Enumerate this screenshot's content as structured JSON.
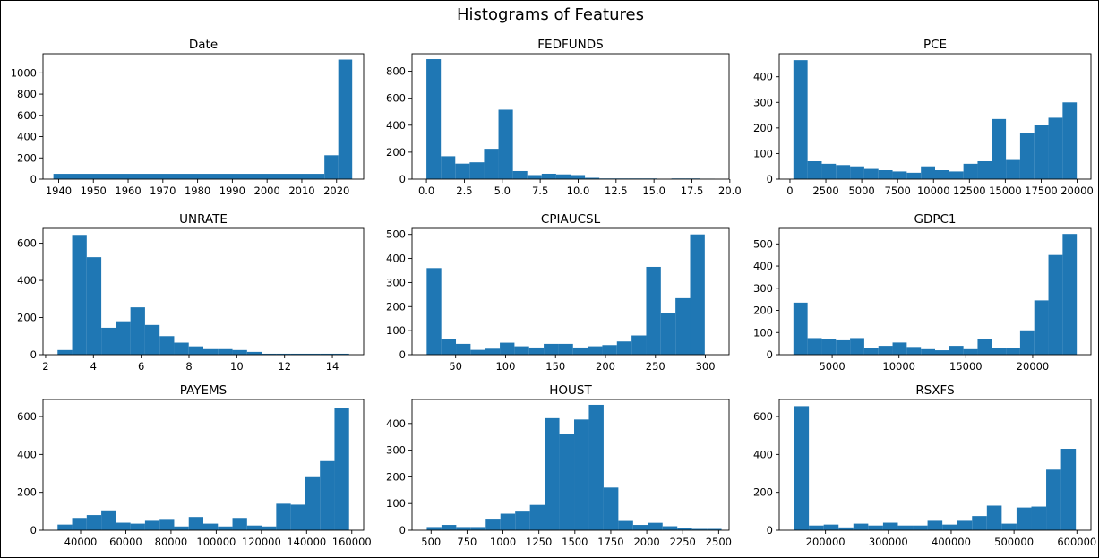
{
  "figure_title": "Histograms of Features",
  "bar_color": "#1f77b4",
  "chart_data": [
    {
      "type": "bar",
      "title": "Date",
      "bins": [
        [
          1938.5,
          2016.5,
          50
        ],
        [
          2016.5,
          2020.5,
          225
        ],
        [
          2020.5,
          2024.5,
          1125
        ]
      ],
      "xlim": [
        1935.5,
        2027.8
      ],
      "ylim": [
        0,
        1180
      ],
      "xticks": [
        1940,
        1950,
        1960,
        1970,
        1980,
        1990,
        2000,
        2010,
        2020
      ],
      "xticklabels": [
        "1940",
        "1950",
        "1960",
        "1970",
        "1980",
        "1990",
        "2000",
        "2010",
        "2020"
      ],
      "yticks": [
        0,
        200,
        400,
        600,
        800,
        1000
      ],
      "yticklabels": [
        "0",
        "200",
        "400",
        "600",
        "800",
        "1000"
      ]
    },
    {
      "type": "bar",
      "title": "FEDFUNDS",
      "x_start": 0,
      "bin_width": 0.95,
      "values": [
        890,
        170,
        115,
        125,
        225,
        515,
        60,
        30,
        40,
        35,
        30,
        10,
        5,
        5,
        5,
        5,
        2,
        5,
        5,
        3
      ],
      "xlim": [
        -0.95,
        19.95
      ],
      "ylim": [
        0,
        930
      ],
      "xticks": [
        0,
        2.5,
        5,
        7.5,
        10,
        12.5,
        15,
        17.5,
        20
      ],
      "xticklabels": [
        "0.0",
        "2.5",
        "5.0",
        "7.5",
        "10.0",
        "12.5",
        "15.0",
        "17.5",
        "20.0"
      ],
      "yticks": [
        0,
        200,
        400,
        600,
        800
      ],
      "yticklabels": [
        "0",
        "200",
        "400",
        "600",
        "800"
      ]
    },
    {
      "type": "bar",
      "title": "PCE",
      "x_start": 240,
      "bin_width": 987,
      "values": [
        465,
        70,
        60,
        55,
        50,
        40,
        35,
        30,
        25,
        50,
        35,
        30,
        60,
        70,
        235,
        75,
        180,
        210,
        240,
        300
      ],
      "xlim": [
        -747,
        20967
      ],
      "ylim": [
        0,
        490
      ],
      "xticks": [
        0,
        2500,
        5000,
        7500,
        10000,
        12500,
        15000,
        17500,
        20000
      ],
      "xticklabels": [
        "0",
        "2500",
        "5000",
        "7500",
        "10000",
        "12500",
        "15000",
        "17500",
        "20000"
      ],
      "yticks": [
        0,
        100,
        200,
        300,
        400
      ],
      "yticklabels": [
        "0",
        "100",
        "200",
        "300",
        "400"
      ]
    },
    {
      "type": "bar",
      "title": "UNRATE",
      "x_start": 2.5,
      "bin_width": 0.61,
      "values": [
        25,
        645,
        525,
        145,
        180,
        255,
        160,
        100,
        65,
        45,
        30,
        30,
        25,
        15,
        5,
        5,
        5,
        5,
        5,
        5
      ],
      "xlim": [
        1.89,
        15.31
      ],
      "ylim": [
        0,
        680
      ],
      "xticks": [
        2,
        4,
        6,
        8,
        10,
        12,
        14
      ],
      "xticklabels": [
        "2",
        "4",
        "6",
        "8",
        "10",
        "12",
        "14"
      ],
      "yticks": [
        0,
        200,
        400,
        600
      ],
      "yticklabels": [
        "0",
        "200",
        "400",
        "600"
      ]
    },
    {
      "type": "bar",
      "title": "CPIAUCSL",
      "x_start": 21,
      "bin_width": 14.65,
      "values": [
        360,
        65,
        45,
        20,
        25,
        50,
        35,
        30,
        45,
        45,
        30,
        35,
        40,
        55,
        80,
        365,
        175,
        235,
        500
      ],
      "xlim": [
        6.35,
        323.7
      ],
      "ylim": [
        0,
        525
      ],
      "xticks": [
        50,
        100,
        150,
        200,
        250,
        300
      ],
      "xticklabels": [
        "50",
        "100",
        "150",
        "200",
        "250",
        "300"
      ],
      "yticks": [
        0,
        100,
        200,
        300,
        400,
        500
      ],
      "yticklabels": [
        "0",
        "100",
        "200",
        "300",
        "400",
        "500"
      ]
    },
    {
      "type": "bar",
      "title": "GDPC1",
      "x_start": 2100,
      "bin_width": 1060,
      "values": [
        235,
        75,
        70,
        65,
        75,
        30,
        40,
        55,
        35,
        25,
        20,
        40,
        25,
        70,
        30,
        30,
        110,
        245,
        450,
        545
      ],
      "xlim": [
        1040,
        24360
      ],
      "ylim": [
        0,
        570
      ],
      "xticks": [
        5000,
        10000,
        15000,
        20000
      ],
      "xticklabels": [
        "5000",
        "10000",
        "15000",
        "20000"
      ],
      "yticks": [
        0,
        100,
        200,
        300,
        400,
        500
      ],
      "yticklabels": [
        "0",
        "100",
        "200",
        "300",
        "400",
        "500"
      ]
    },
    {
      "type": "bar",
      "title": "PAYEMS",
      "x_start": 29800,
      "bin_width": 6450,
      "values": [
        30,
        65,
        80,
        105,
        40,
        35,
        50,
        55,
        20,
        70,
        35,
        20,
        65,
        25,
        20,
        140,
        135,
        280,
        365,
        645
      ],
      "xlim": [
        23350,
        165250
      ],
      "ylim": [
        0,
        690
      ],
      "xticks": [
        40000,
        60000,
        80000,
        100000,
        120000,
        140000,
        160000
      ],
      "xticklabels": [
        "40000",
        "60000",
        "80000",
        "100000",
        "120000",
        "140000",
        "160000"
      ],
      "yticks": [
        0,
        200,
        400,
        600
      ],
      "yticklabels": [
        "0",
        "200",
        "400",
        "600"
      ]
    },
    {
      "type": "bar",
      "title": "HOUST",
      "x_start": 470,
      "bin_width": 102.5,
      "values": [
        12,
        20,
        12,
        12,
        40,
        62,
        70,
        95,
        420,
        360,
        415,
        470,
        160,
        35,
        20,
        28,
        15,
        8,
        5,
        5
      ],
      "xlim": [
        367.5,
        2572.5
      ],
      "ylim": [
        0,
        490
      ],
      "xticks": [
        500,
        750,
        1000,
        1250,
        1500,
        1750,
        2000,
        2250,
        2500
      ],
      "xticklabels": [
        "500",
        "750",
        "1000",
        "1250",
        "1500",
        "1750",
        "2000",
        "2250",
        "2500"
      ],
      "yticks": [
        0,
        100,
        200,
        300,
        400
      ],
      "yticklabels": [
        "0",
        "100",
        "200",
        "300",
        "400"
      ]
    },
    {
      "type": "bar",
      "title": "RSXFS",
      "x_start": 150000,
      "bin_width": 23600,
      "values": [
        655,
        25,
        30,
        15,
        35,
        25,
        40,
        25,
        25,
        50,
        30,
        50,
        75,
        130,
        35,
        120,
        125,
        320,
        430
      ],
      "xlim": [
        126400,
        622400
      ],
      "ylim": [
        0,
        690
      ],
      "xticks": [
        200000,
        300000,
        400000,
        500000,
        600000
      ],
      "xticklabels": [
        "200000",
        "300000",
        "400000",
        "500000",
        "600000"
      ],
      "yticks": [
        0,
        200,
        400,
        600
      ],
      "yticklabels": [
        "0",
        "200",
        "400",
        "600"
      ]
    }
  ]
}
